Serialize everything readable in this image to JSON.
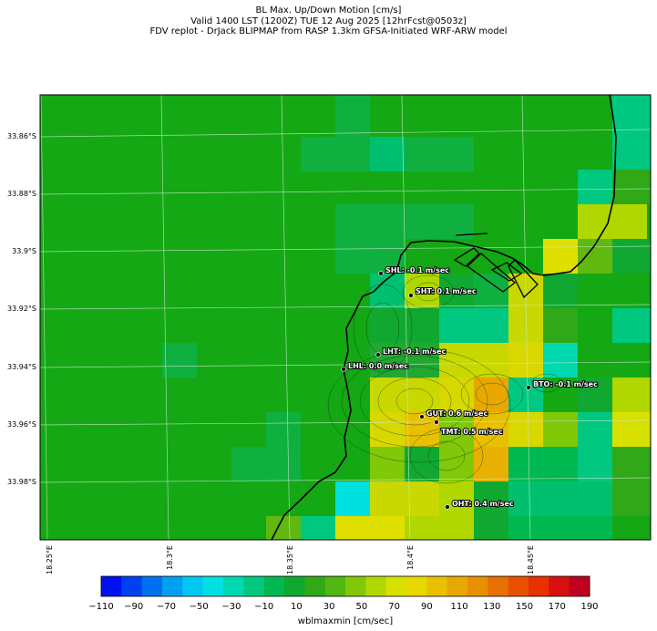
{
  "header": {
    "line1": "BL Max. Up/Down Motion [cm/s]",
    "line2": "Valid 1400 LST (1200Z) TUE 12 Aug 2025 [12hrFcst@0503z]",
    "line3": "FDV replot - DrJack BLIPMAP from RASP 1.3km GFSA-Initiated WRF-ARW model"
  },
  "lat_labels": [
    "33.86°S",
    "33.88°S",
    "33.9°S",
    "33.92°S",
    "33.94°S",
    "33.96°S",
    "33.98°S"
  ],
  "lon_labels": [
    "18.25°E",
    "18.3°E",
    "18.35°E",
    "18.4°E",
    "18.45°E"
  ],
  "stations": [
    {
      "label": "SHL: -0.1 m/sec"
    },
    {
      "label": "SHT: 0.1 m/sec"
    },
    {
      "label": "LHT: -0.1 m/sec"
    },
    {
      "label": "LHL: 0.0 m/sec"
    },
    {
      "label": "BTO: -0.1 m/sec"
    },
    {
      "label": "GUT: 0.6 m/sec"
    },
    {
      "label": "TMT: 0.5 m/sec"
    },
    {
      "label": "OHT: 0.4 m/sec"
    }
  ],
  "colorbar": {
    "ticks": [
      "−110",
      "−90",
      "−70",
      "−50",
      "−30",
      "−10",
      "10",
      "30",
      "50",
      "70",
      "90",
      "110",
      "130",
      "150",
      "170",
      "190"
    ],
    "label": "wblmaxmin [cm/sec]",
    "colors": [
      "#0010f0",
      "#0040f0",
      "#0070f0",
      "#00a0f0",
      "#00c8f0",
      "#00e0e0",
      "#00d8b0",
      "#00c880",
      "#00b850",
      "#10a830",
      "#30a818",
      "#50b810",
      "#80c808",
      "#b0d800",
      "#d8e000",
      "#e8d800",
      "#e8c000",
      "#e8a800",
      "#e89000",
      "#e87000",
      "#e85000",
      "#e83000",
      "#d81010",
      "#c00020"
    ]
  }
}
